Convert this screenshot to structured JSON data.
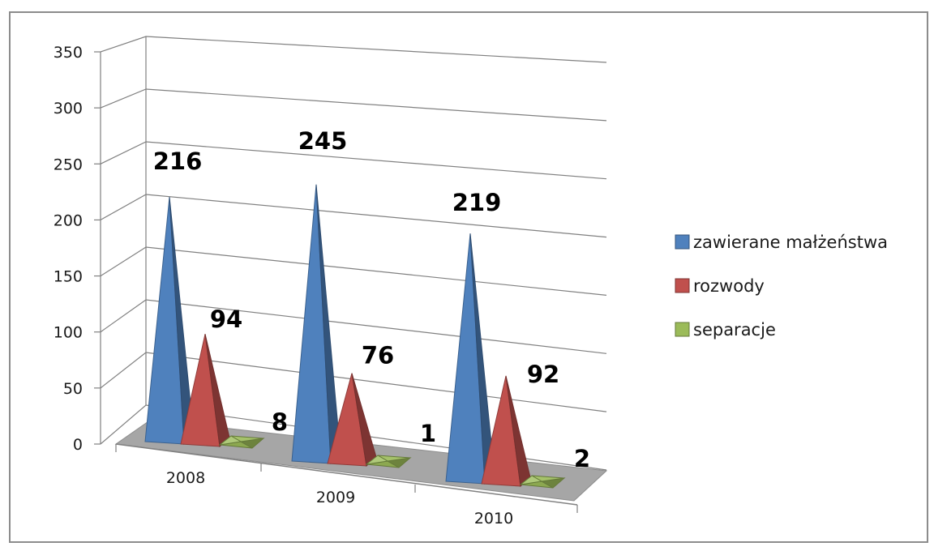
{
  "chart_data": {
    "type": "bar",
    "style": "3d-pyramid",
    "categories": [
      "2008",
      "2009",
      "2010"
    ],
    "series": [
      {
        "name": "zawierane małżeństwa",
        "color": "#4f81bd",
        "values": [
          216,
          245,
          219
        ]
      },
      {
        "name": "rozwody",
        "color": "#c0504d",
        "values": [
          94,
          76,
          92
        ]
      },
      {
        "name": "separacje",
        "color": "#9bbb59",
        "values": [
          8,
          1,
          2
        ]
      }
    ],
    "ylim": [
      0,
      350
    ],
    "yticks": [
      "0",
      "50",
      "100",
      "150",
      "200",
      "250",
      "300",
      "350"
    ],
    "data_labels": [
      "216",
      "94",
      "8",
      "245",
      "76",
      "1",
      "219",
      "92",
      "2"
    ],
    "grid": true,
    "legend_position": "right",
    "title": "",
    "xlabel": "",
    "ylabel": ""
  }
}
